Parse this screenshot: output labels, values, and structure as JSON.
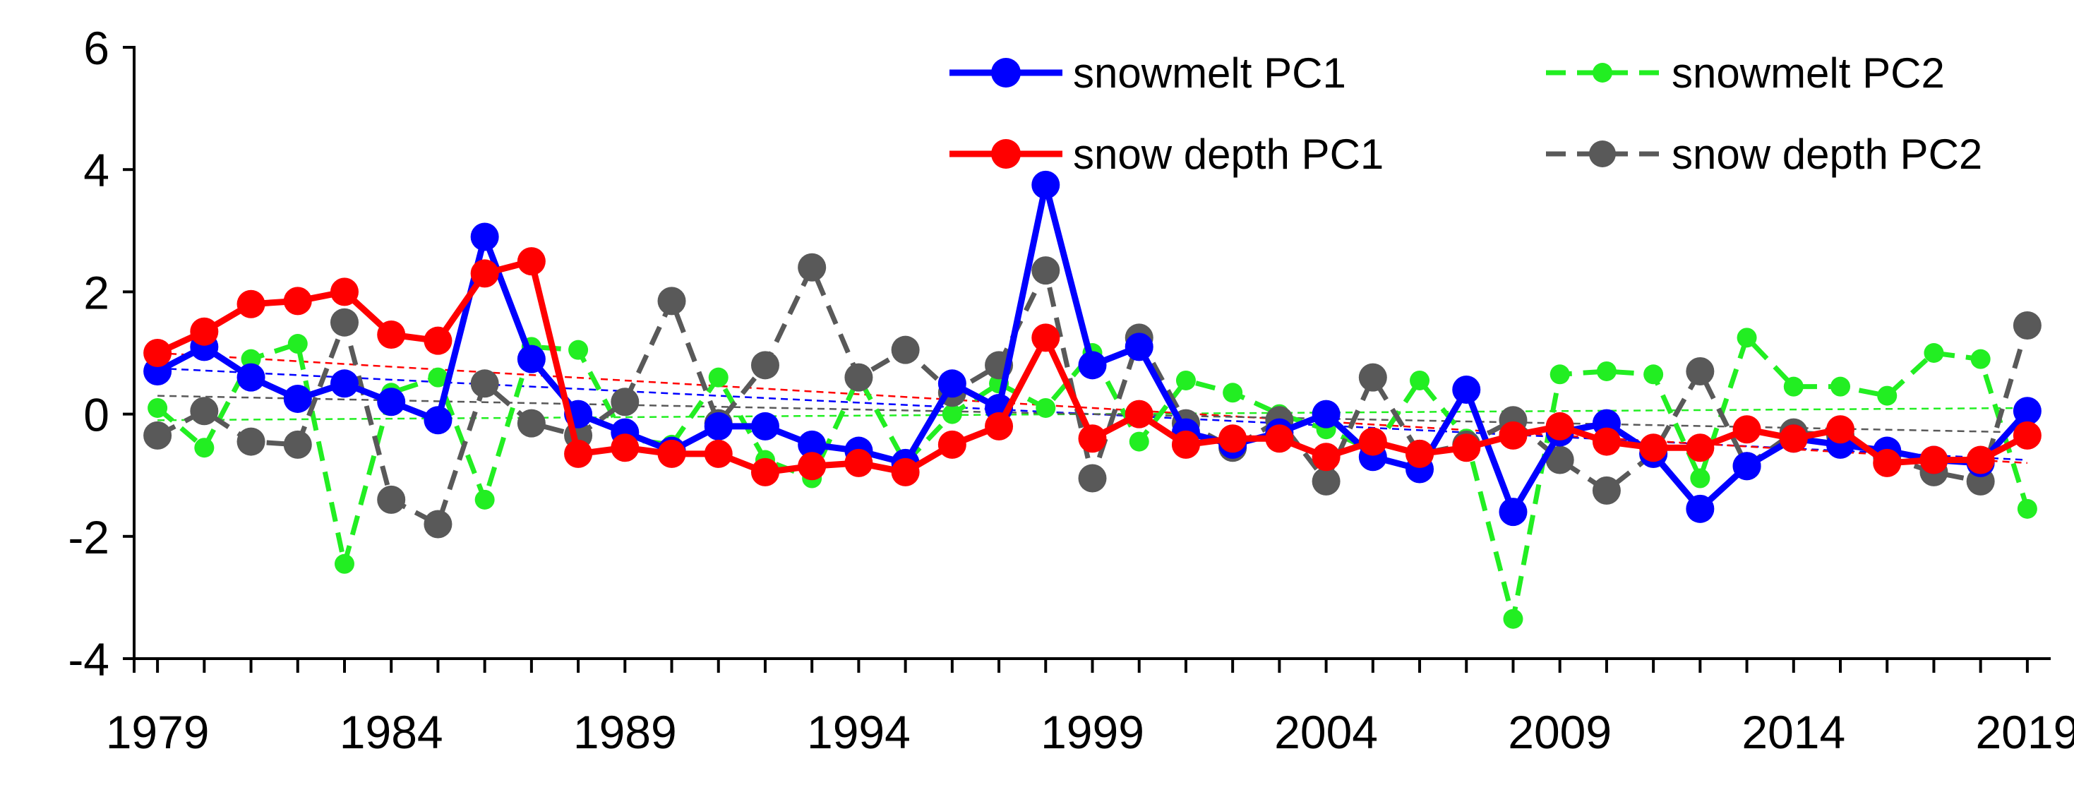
{
  "chart_data": {
    "type": "line",
    "title": "",
    "xlabel": "",
    "ylabel": "",
    "x": [
      1979,
      1980,
      1981,
      1982,
      1983,
      1984,
      1985,
      1986,
      1987,
      1988,
      1989,
      1990,
      1991,
      1992,
      1993,
      1994,
      1995,
      1996,
      1997,
      1998,
      1999,
      2000,
      2001,
      2002,
      2003,
      2004,
      2005,
      2006,
      2007,
      2008,
      2009,
      2010,
      2011,
      2012,
      2013,
      2014,
      2015,
      2016,
      2017,
      2018,
      2019
    ],
    "xlim": [
      1978.5,
      2019.5
    ],
    "ylim": [
      -4,
      6
    ],
    "x_ticks": [
      "1979",
      "1984",
      "1989",
      "1994",
      "1999",
      "2004",
      "2009",
      "2014",
      "2019"
    ],
    "y_ticks": [
      "-4",
      "-2",
      "0",
      "2",
      "4",
      "6"
    ],
    "legend_position": "top-right",
    "series": [
      {
        "name": "snowmelt PC1",
        "color": "#0000ff",
        "style": "solid",
        "marker": "large",
        "values": [
          0.7,
          1.1,
          0.6,
          0.25,
          0.5,
          0.2,
          -0.1,
          2.9,
          0.9,
          0.0,
          -0.3,
          -0.6,
          -0.2,
          -0.2,
          -0.5,
          -0.6,
          -0.8,
          0.5,
          0.1,
          3.75,
          0.8,
          1.1,
          -0.3,
          -0.5,
          -0.3,
          0.0,
          -0.7,
          -0.9,
          0.4,
          -1.6,
          -0.3,
          -0.15,
          -0.65,
          -1.55,
          -0.85,
          -0.4,
          -0.5,
          -0.6,
          -0.75,
          -0.8,
          0.05
        ],
        "trend": [
          0.75,
          -0.75
        ]
      },
      {
        "name": "snowmelt PC2",
        "color": "#22ee22",
        "style": "dashed",
        "marker": "small",
        "values": [
          0.1,
          -0.55,
          0.9,
          1.15,
          -2.45,
          0.35,
          0.6,
          -1.4,
          1.1,
          1.05,
          -0.4,
          -0.5,
          0.6,
          -0.75,
          -1.05,
          0.6,
          -0.8,
          0.0,
          0.5,
          0.1,
          1.0,
          -0.45,
          0.55,
          0.35,
          0.0,
          -0.25,
          -0.6,
          0.55,
          -0.4,
          -3.35,
          0.65,
          0.7,
          0.65,
          -1.05,
          1.25,
          0.45,
          0.45,
          0.3,
          1.0,
          0.9,
          -1.55
        ],
        "trend": [
          -0.1,
          0.1
        ]
      },
      {
        "name": "snow depth PC1",
        "color": "#ff0000",
        "style": "solid",
        "marker": "large",
        "values": [
          1.0,
          1.35,
          1.8,
          1.85,
          2.0,
          1.3,
          1.2,
          2.3,
          2.5,
          -0.65,
          -0.55,
          -0.65,
          -0.65,
          -0.95,
          -0.85,
          -0.8,
          -0.95,
          -0.5,
          -0.2,
          1.25,
          -0.4,
          0.0,
          -0.5,
          -0.4,
          -0.4,
          -0.7,
          -0.45,
          -0.65,
          -0.55,
          -0.35,
          -0.2,
          -0.45,
          -0.55,
          -0.55,
          -0.25,
          -0.4,
          -0.25,
          -0.8,
          -0.75,
          -0.75,
          -0.35
        ],
        "trend": [
          1.0,
          -0.8
        ]
      },
      {
        "name": "snow depth PC2",
        "color": "#595959",
        "style": "dashed",
        "marker": "large",
        "values": [
          -0.35,
          0.05,
          -0.45,
          -0.5,
          1.5,
          -1.4,
          -1.8,
          0.5,
          -0.15,
          -0.35,
          0.2,
          1.85,
          -0.15,
          0.8,
          2.4,
          0.6,
          1.05,
          0.35,
          0.8,
          2.35,
          -1.05,
          1.25,
          -0.15,
          -0.55,
          -0.1,
          -1.1,
          0.6,
          -0.65,
          -0.5,
          -0.1,
          -0.75,
          -1.25,
          -0.65,
          0.7,
          -0.85,
          -0.3,
          -0.35,
          -0.7,
          -0.95,
          -1.1,
          1.45
        ],
        "trend": [
          0.3,
          -0.3
        ]
      }
    ]
  }
}
